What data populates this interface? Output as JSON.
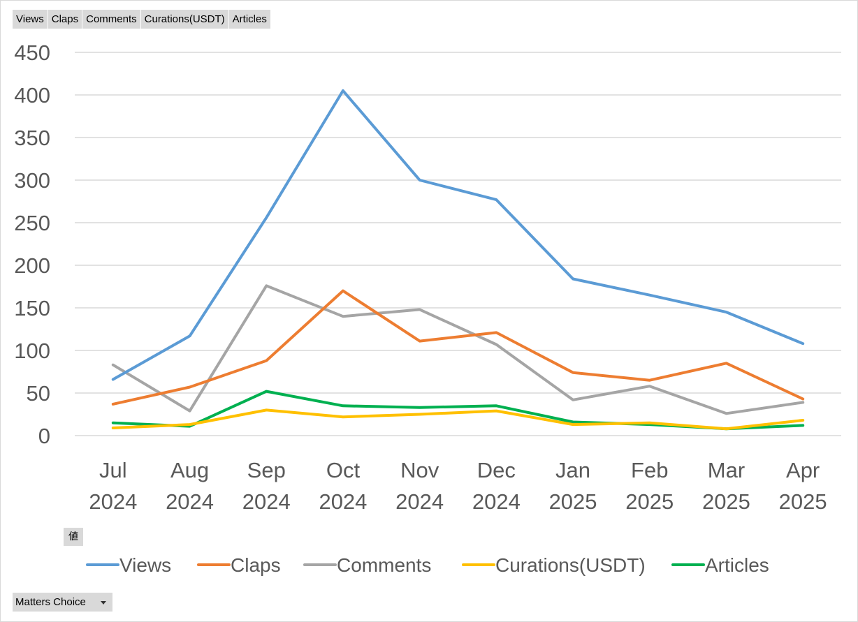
{
  "field_buttons": [
    "Views",
    "Claps",
    "Comments",
    "Curations(USDT)",
    "Articles"
  ],
  "values_button": "値",
  "filter_button": "Matters Choice",
  "chart_data": {
    "type": "line",
    "categories": [
      [
        "Jul",
        "2024"
      ],
      [
        "Aug",
        "2024"
      ],
      [
        "Sep",
        "2024"
      ],
      [
        "Oct",
        "2024"
      ],
      [
        "Nov",
        "2024"
      ],
      [
        "Dec",
        "2024"
      ],
      [
        "Jan",
        "2025"
      ],
      [
        "Feb",
        "2025"
      ],
      [
        "Mar",
        "2025"
      ],
      [
        "Apr",
        "2025"
      ]
    ],
    "ylim": [
      0,
      450
    ],
    "yticks": [
      0,
      50,
      100,
      150,
      200,
      250,
      300,
      350,
      400,
      450
    ],
    "grid": true,
    "legend_position": "bottom",
    "series": [
      {
        "name": "Views",
        "color": "#5b9bd5",
        "values": [
          66,
          117,
          256,
          405,
          300,
          277,
          184,
          165,
          145,
          108
        ]
      },
      {
        "name": "Claps",
        "color": "#ed7d31",
        "values": [
          37,
          57,
          88,
          170,
          111,
          121,
          74,
          65,
          85,
          43
        ]
      },
      {
        "name": "Comments",
        "color": "#a5a5a5",
        "values": [
          83,
          29,
          176,
          140,
          148,
          107,
          42,
          58,
          26,
          39
        ]
      },
      {
        "name": "Curations(USDT)",
        "color": "#ffc000",
        "values": [
          9,
          13,
          30,
          22,
          25,
          29,
          13,
          15,
          8,
          18
        ]
      },
      {
        "name": "Articles",
        "color": "#00b050",
        "values": [
          15,
          11,
          52,
          35,
          33,
          35,
          16,
          13,
          8,
          12
        ]
      }
    ]
  }
}
